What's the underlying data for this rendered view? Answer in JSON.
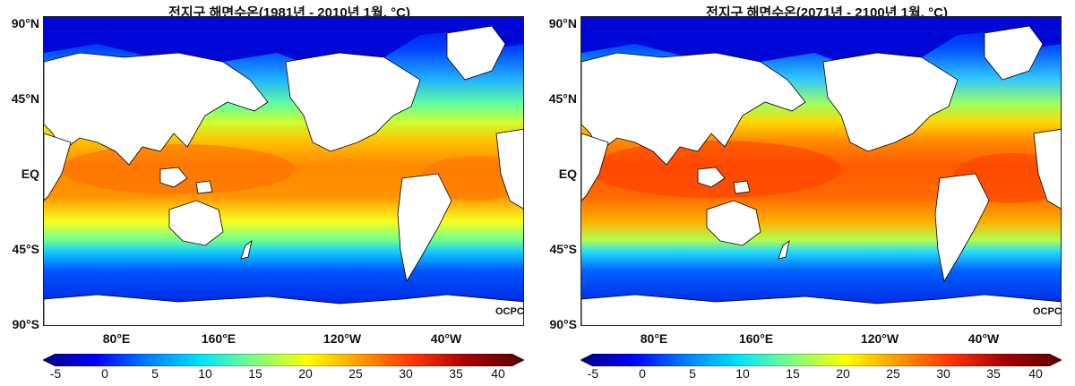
{
  "panels": [
    {
      "title": "전지구 해면수온(1981년 - 2010년 1월, °C)",
      "scenario": "past",
      "credit": "OCPC"
    },
    {
      "title": "전지구 해면수온(2071년 - 2100년 1월, °C)",
      "scenario": "future",
      "credit": "OCPC"
    }
  ],
  "axes": {
    "lat_labels": [
      "90°N",
      "45°N",
      "EQ",
      "45°S",
      "90°S"
    ],
    "lon_labels": [
      "80°E",
      "160°E",
      "120°W",
      "40°W"
    ]
  },
  "colorbar": {
    "ticks": [
      "-5",
      "0",
      "5",
      "10",
      "15",
      "20",
      "25",
      "30",
      "35",
      "40"
    ],
    "colors": [
      "#00007f",
      "#0000ff",
      "#0080ff",
      "#00e5ff",
      "#7fff7f",
      "#ffff00",
      "#ff9900",
      "#ff3300",
      "#a80000",
      "#5a0000"
    ]
  },
  "palette": {
    "land": "#ffffff",
    "coast": "#000000"
  }
}
